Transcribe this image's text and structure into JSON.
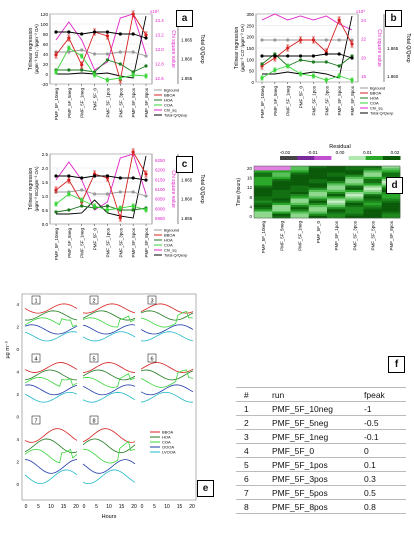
{
  "panel_a": {
    "tag": "a",
    "yleft_label": "Trilinear regression (µgm⁻³ NO₃⁻/µgm⁻³ OA)",
    "yleft_ticks": [
      "120",
      "100",
      "80",
      "60",
      "40",
      "20",
      "0",
      "-20"
    ],
    "yright1_label": "Chi square value",
    "yright1_ticks": [
      "13.4",
      "13.2",
      "13.0",
      "12.8",
      "12.6"
    ],
    "yright1_exp": "x10³",
    "yright2_label": "Total Q/Qexp",
    "yright2_ticks": [
      "1.870",
      "1.865",
      "1.860",
      "1.855"
    ]
  },
  "panel_b": {
    "tag": "b",
    "yleft_label": "Trilinear regression (µgm⁻³ CO⁻/µgm⁻³ OA)",
    "yleft_ticks": [
      "300",
      "250",
      "200",
      "150",
      "100",
      "50",
      "0"
    ],
    "yright1_label": "Chi square value",
    "yright1_ticks": [
      "24",
      "22",
      "20",
      "18"
    ],
    "yright1_exp": "x10³",
    "yright2_label": "Total Q/Qexp",
    "yright2_ticks": [
      "1.870",
      "1.865",
      "1.860"
    ]
  },
  "panel_c": {
    "tag": "c",
    "yleft_label": "Trilinear regression (µgm⁻³ BC/µgm⁻³ OA)",
    "yleft_ticks": [
      "2.5",
      "2.0",
      "1.5",
      "1.0",
      "0.5",
      "0.0"
    ],
    "yright1_label": "Chi square value",
    "yright1_ticks": [
      "6250",
      "6200",
      "6150",
      "6100",
      "6050",
      "6000",
      "5950"
    ],
    "yright2_label": "Total Q/Qexp",
    "yright2_ticks": [
      "1.870",
      "1.865",
      "1.860",
      "1.855"
    ]
  },
  "runs": [
    "PMF_5F_10neg",
    "PMF_5F_5neg",
    "PMF_5F_1neg",
    "PMF_5F_0",
    "PMF_5F_1pos",
    "PMF_5F_3pos",
    "PMF_5F_5pos",
    "PMF_5F_8pos"
  ],
  "legend_abc": [
    "Bground",
    "BBOA",
    "HOA",
    "COA",
    "Chi_sq",
    "Total Q/Qexp"
  ],
  "panel_d": {
    "tag": "d",
    "title": "Residual",
    "scale_ticks": [
      "-0.02",
      "-0.01",
      "0.00",
      "0.01",
      "0.02"
    ],
    "ylabel": "Time (hours)",
    "yticks": [
      "20",
      "16",
      "12",
      "8",
      "4",
      "0"
    ],
    "xlabels": [
      "PMF_5F_10neg",
      "PMF_5F_5neg",
      "PMF_5F_1neg",
      "PMF_5F_0",
      "PMF_5F_1pos",
      "PMF_5F_3pos",
      "PMF_5F_5pos",
      "PMF_5F_8pos"
    ]
  },
  "panel_e": {
    "tag": "e",
    "ylabel": "µg m⁻³",
    "xlabel": "Hours",
    "xticks": [
      "0",
      "5",
      "10",
      "15",
      "20",
      "0",
      "5",
      "10",
      "15",
      "20",
      "0",
      "5",
      "10",
      "15",
      "20"
    ],
    "box_labels": [
      "1",
      "2",
      "3",
      "4",
      "5",
      "6",
      "7",
      "8"
    ],
    "legend": [
      "BBOA",
      "HOA",
      "COA",
      "OOOA",
      "LVOOA"
    ]
  },
  "panel_f": {
    "tag": "f",
    "headers": [
      "#",
      "run",
      "fpeak"
    ],
    "rows": [
      [
        "1",
        "PMF_5F_10neg",
        "-1"
      ],
      [
        "2",
        "PMF_5F_5neg",
        "-0.5"
      ],
      [
        "3",
        "PMF_5F_1neg",
        "-0.1"
      ],
      [
        "4",
        "PMF_5F_0",
        "0"
      ],
      [
        "5",
        "PMF_5F_1pos",
        "0.1"
      ],
      [
        "6",
        "PMF_5F_3pos",
        "0.3"
      ],
      [
        "7",
        "PMF_5F_5pos",
        "0.5"
      ],
      [
        "8",
        "PMF_5F_8pos",
        "0.8"
      ]
    ]
  },
  "colors": {
    "bground": "#999999",
    "bboa": "#d62020",
    "hoa": "#1f7a1f",
    "coa": "#3ad63a",
    "chi": "#e020c8",
    "totq": "#000000",
    "oooa": "#1e3aa8",
    "lvooa": "#22b8c8"
  }
}
